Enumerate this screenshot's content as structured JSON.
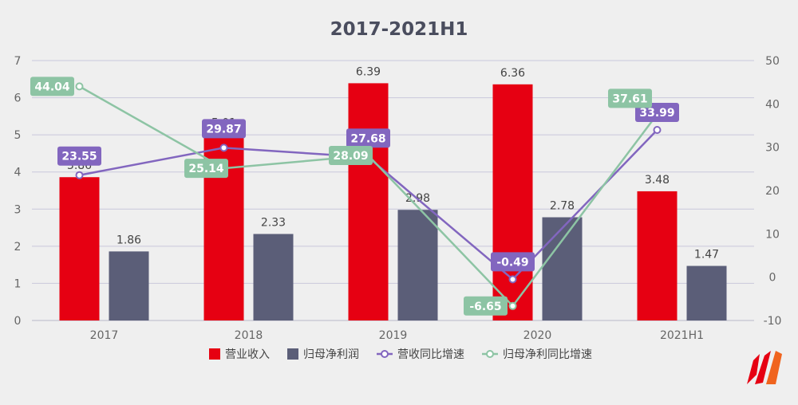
{
  "chart_data": {
    "type": "bar-line-combo",
    "title": "2017-2021H1",
    "categories": [
      "2017",
      "2018",
      "2019",
      "2020",
      "2021H1"
    ],
    "left_axis": {
      "ylim": [
        0,
        7
      ],
      "ticks": [
        0,
        1,
        2,
        3,
        4,
        5,
        6,
        7
      ]
    },
    "right_axis": {
      "ylim": [
        -10,
        50
      ],
      "ticks": [
        -10,
        0,
        10,
        20,
        30,
        40,
        50
      ]
    },
    "bar_series": [
      {
        "name": "营业收入",
        "color": "#e60012",
        "values": [
          3.86,
          5.01,
          6.39,
          6.36,
          3.48
        ],
        "labels": [
          "3.86",
          "5.01",
          "6.39",
          "6.36",
          "3.48"
        ]
      },
      {
        "name": "归母净利润",
        "color": "#5b5e78",
        "values": [
          1.86,
          2.33,
          2.98,
          2.78,
          1.47
        ],
        "labels": [
          "1.86",
          "2.33",
          "2.98",
          "2.78",
          "1.47"
        ]
      }
    ],
    "line_series": [
      {
        "name": "营收同比增速",
        "color": "#8266bf",
        "values": [
          23.55,
          29.87,
          27.68,
          -0.49,
          33.99
        ],
        "labels": [
          "23.55",
          "29.87",
          "27.68",
          "-0.49",
          "33.99"
        ]
      },
      {
        "name": "归母净利同比增速",
        "color": "#8dc4a4",
        "values": [
          44.04,
          25.14,
          28.09,
          -6.65,
          37.61
        ],
        "labels": [
          "44.04",
          "25.14",
          "28.09",
          "-6.65",
          "37.61"
        ]
      }
    ],
    "grid": true,
    "legend_position": "bottom-center"
  }
}
